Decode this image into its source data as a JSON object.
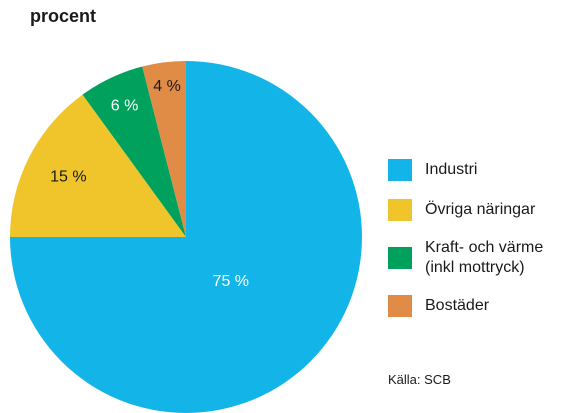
{
  "chart_data": {
    "type": "pie",
    "title": "procent",
    "categories": [
      "Industri",
      "Övriga näringar",
      "Kraft- och värme (inkl mottryck)",
      "Bostäder"
    ],
    "values": [
      75,
      15,
      6,
      4
    ],
    "value_labels": [
      "75 %",
      "15 %",
      "6 %",
      "4 %"
    ],
    "colors": [
      "#13b5e9",
      "#efc52b",
      "#00a15c",
      "#e08b46"
    ],
    "label_colors": [
      "#ffffff",
      "#1a1a1a",
      "#ffffff",
      "#1a1a1a"
    ],
    "source": "Källa: SCB"
  }
}
